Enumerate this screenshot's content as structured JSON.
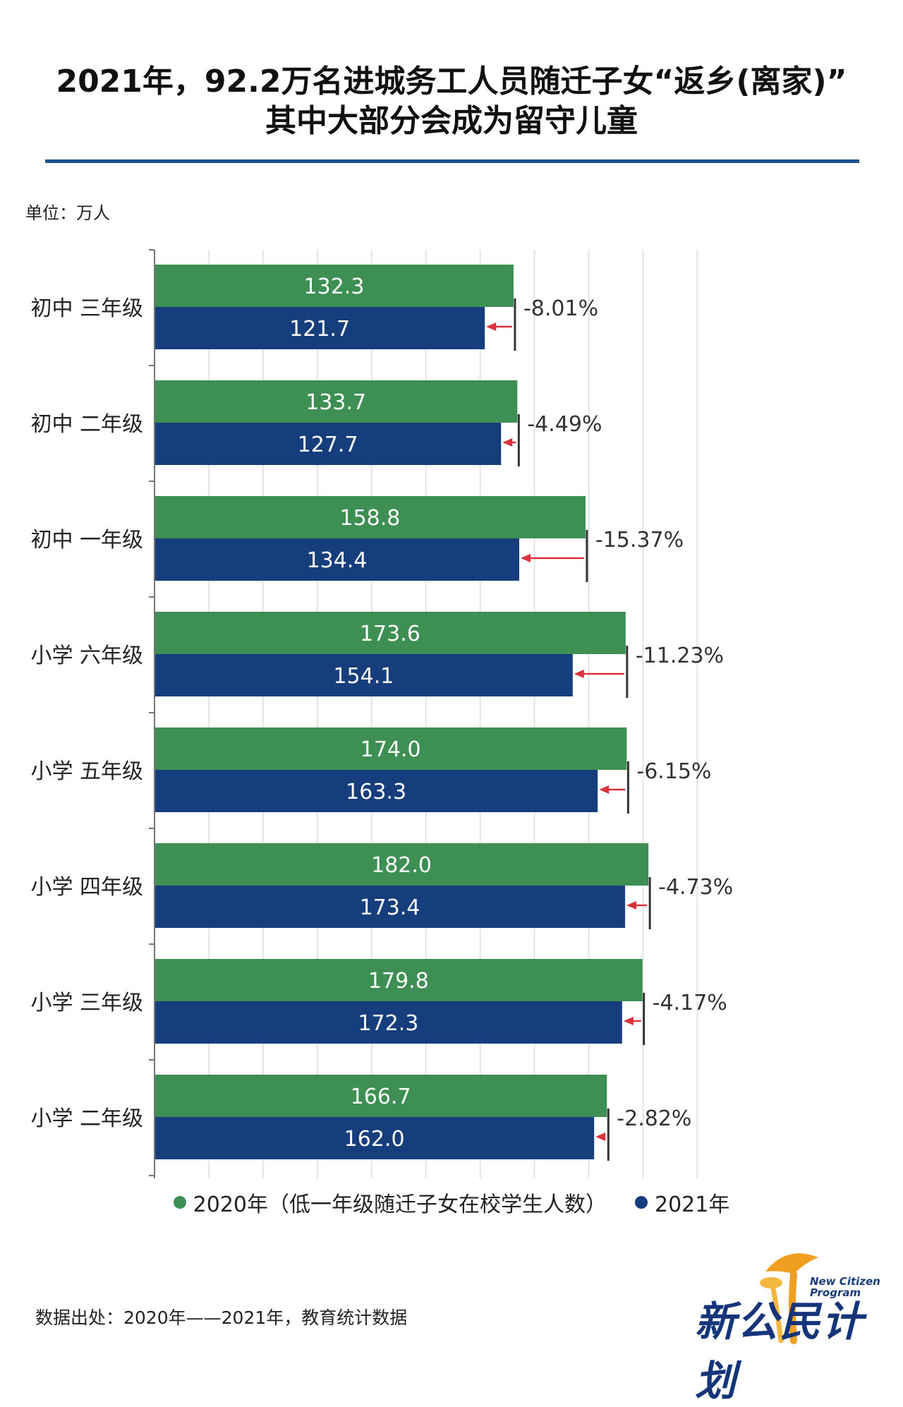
{
  "title": {
    "line1": "2021年，92.2万名进城务工人员随迁子女“返乡(离家)”",
    "line2": "其中大部分会成为留守儿童"
  },
  "unit": "单位：万人",
  "colors": {
    "series_2020": "#3e8f53",
    "series_2021": "#163e7c",
    "arrow": "#d9323c",
    "rule": "#1b4f8c"
  },
  "chart_data": {
    "type": "bar",
    "orientation": "horizontal",
    "categories": [
      "初中 三年级",
      "初中 二年级",
      "初中 一年级",
      "小学 六年级",
      "小学 五年级",
      "小学 四年级",
      "小学 三年级",
      "小学 二年级"
    ],
    "series": [
      {
        "name": "2020年（低一年级随迁子女在校学生人数）",
        "values": [
          132.3,
          133.7,
          158.8,
          173.6,
          174.0,
          182.0,
          179.8,
          166.7
        ]
      },
      {
        "name": "2021年",
        "values": [
          121.7,
          127.7,
          134.4,
          154.1,
          163.3,
          173.4,
          172.3,
          162.0
        ]
      }
    ],
    "value_labels_2020": [
      "132.3",
      "133.7",
      "158.8",
      "173.6",
      "174.0",
      "182.0",
      "179.8",
      "166.7"
    ],
    "value_labels_2021": [
      "121.7",
      "127.7",
      "134.4",
      "154.1",
      "163.3",
      "173.4",
      "172.3",
      "162.0"
    ],
    "change_labels": [
      "-8.01%",
      "-4.49%",
      "-15.37%",
      "-11.23%",
      "-6.15%",
      "-4.73%",
      "-4.17%",
      "-2.82%"
    ],
    "xlim": [
      0,
      200
    ],
    "grid": true,
    "legend_position": "bottom"
  },
  "legend": {
    "label_2020": "2020年（低一年级随迁子女在校学生人数）",
    "label_2021": "2021年"
  },
  "source": "数据出处：2020年——2021年，教育统计数据",
  "logo": {
    "en_line1": "New Citizen",
    "en_line2": "Program",
    "cn": "新公民计划"
  }
}
